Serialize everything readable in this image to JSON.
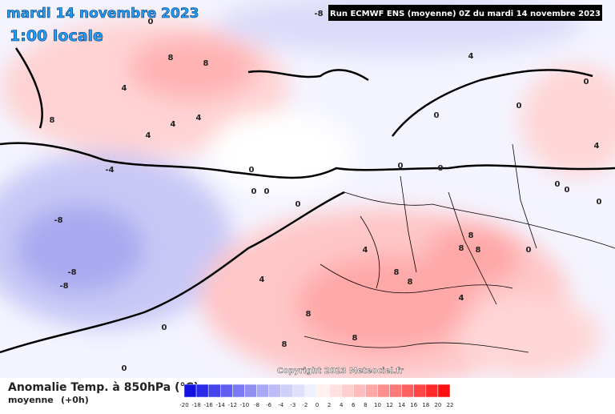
{
  "header": {
    "date": "mardi 14 novembre 2023",
    "time": "1:00 locale",
    "run": "Run ECMWF ENS (moyenne) 0Z du mardi 14 novembre 2023",
    "copyright": "Copyright 2023 Meteociel.fr"
  },
  "contour_labels": [
    "8",
    "8",
    "4",
    "8",
    "4",
    "4",
    "4",
    "-4",
    "-8",
    "-8",
    "-8",
    "0",
    "0",
    "0",
    "0",
    "4",
    "4",
    "8",
    "8",
    "8",
    "8",
    "8",
    "8",
    "8",
    "8",
    "4",
    "0",
    "0",
    "-8",
    "4",
    "0",
    "0",
    "0",
    "0",
    "0",
    "0",
    "0",
    "0",
    "0",
    "4",
    "0"
  ],
  "legend": {
    "title": "Anomalie Temp. à 850hPa (°C)",
    "subtitle": "moyenne",
    "step": "(+0h)",
    "ticks": [
      -20,
      -18,
      -16,
      -14,
      -12,
      -10,
      -8,
      -6,
      -4,
      -3,
      -2,
      0,
      2,
      4,
      6,
      8,
      10,
      12,
      14,
      16,
      18,
      20,
      22
    ],
    "colors": [
      "#1010e0",
      "#2a2ae8",
      "#4545ee",
      "#6060f0",
      "#7a7af2",
      "#9090f4",
      "#a8a8f6",
      "#bcbcf8",
      "#d0d0fa",
      "#e0e0fc",
      "#f0f0fe",
      "#fff0f0",
      "#ffe0e0",
      "#ffd0d0",
      "#ffbcbc",
      "#ffa8a8",
      "#ff9090",
      "#ff7878",
      "#ff6060",
      "#ff4545",
      "#ff2a2a",
      "#ff1010"
    ]
  }
}
